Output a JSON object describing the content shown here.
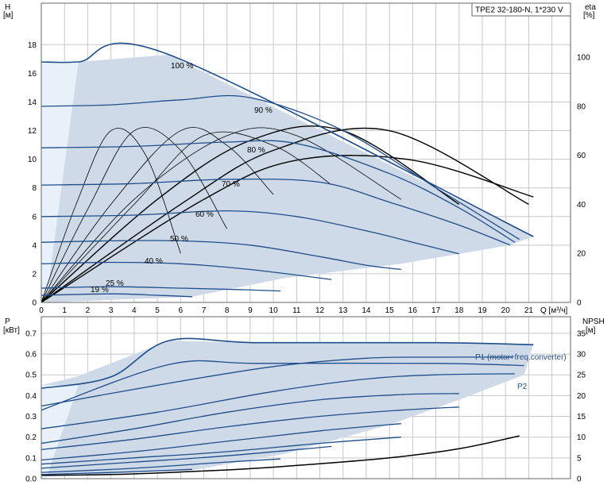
{
  "chart_data": [
    {
      "type": "line",
      "title": "TPE2 32-180-N, 1*230 V",
      "xlabel": "Q [м³/ч]",
      "ylabel": "H [м]",
      "ylabel_lines": [
        "H",
        "[м]"
      ],
      "y2label_lines": [
        "eta",
        "[%]"
      ],
      "xlim": [
        0,
        22.8
      ],
      "ylim": [
        0,
        20.9
      ],
      "y2lim": [
        0,
        122
      ],
      "x_ticks": [
        "0",
        "1",
        "2",
        "3",
        "4",
        "5",
        "6",
        "7",
        "8",
        "9",
        "10",
        "11",
        "12",
        "13",
        "14",
        "15",
        "16",
        "17",
        "18",
        "19",
        "20",
        "21"
      ],
      "y_ticks": [
        "0",
        "2",
        "4",
        "6",
        "8",
        "10",
        "12",
        "14",
        "16",
        "18"
      ],
      "y2_ticks": [
        "0",
        "20",
        "40",
        "60",
        "80",
        "100"
      ],
      "q_unit_label": "Q [м³/ч]",
      "grid": true,
      "colors": {
        "curve": "#1f4e8c",
        "fill": "#cfdae8",
        "eta": "#000000",
        "grid": "#c8c8c8"
      },
      "operating_area": {
        "x": [
          0,
          1.6,
          5.5,
          9.2,
          21.2,
          20.2,
          15.5,
          10.5,
          6.5,
          1.0,
          0.2,
          0
        ],
        "y": [
          16.8,
          16.8,
          17.3,
          14.3,
          4.6,
          4.0,
          2.7,
          1.7,
          0.4,
          0.05,
          0.0,
          0
        ]
      },
      "series": [
        {
          "name": "100 %",
          "label": "100 %",
          "x": [
            0,
            1.6,
            5.5,
            21.2
          ],
          "y": [
            16.8,
            16.8,
            17.3,
            4.6
          ]
        },
        {
          "name": "90 %",
          "label": "90 %",
          "x": [
            0,
            3,
            6,
            9,
            13,
            17,
            20.6
          ],
          "y": [
            13.7,
            13.8,
            14.15,
            14.3,
            12.0,
            8.0,
            4.4
          ]
        },
        {
          "name": "80 %",
          "label": "80 %",
          "x": [
            0,
            4,
            8,
            11,
            15,
            18,
            20.4
          ],
          "y": [
            10.8,
            10.9,
            11.2,
            11.1,
            9.0,
            6.6,
            4.2
          ]
        },
        {
          "name": "70 %",
          "label": "70 %",
          "x": [
            0,
            4,
            8,
            12,
            15,
            18,
            20.2
          ],
          "y": [
            8.2,
            8.3,
            8.6,
            8.4,
            7.0,
            5.4,
            4.0
          ]
        },
        {
          "name": "60 %",
          "label": "60 %",
          "x": [
            0,
            4,
            8,
            11,
            14,
            16,
            18
          ],
          "y": [
            6.0,
            6.1,
            6.4,
            6.0,
            5.0,
            4.2,
            3.4
          ]
        },
        {
          "name": "50 %",
          "label": "50 %",
          "x": [
            0,
            3,
            6,
            9,
            12,
            14,
            15.5
          ],
          "y": [
            4.2,
            4.3,
            4.3,
            4.0,
            3.2,
            2.6,
            2.3
          ]
        },
        {
          "name": "40 %",
          "label": "40 %",
          "x": [
            0,
            3,
            6,
            9,
            12.5
          ],
          "y": [
            2.7,
            2.8,
            2.7,
            2.3,
            1.6
          ]
        },
        {
          "name": "25 %",
          "label": "25 %",
          "x": [
            0,
            3,
            6,
            8.5,
            10.3
          ],
          "y": [
            1.0,
            1.1,
            1.0,
            0.9,
            0.8
          ]
        },
        {
          "name": "19 %",
          "label": "19 %",
          "x": [
            0,
            3,
            5,
            6.5
          ],
          "y": [
            0.5,
            0.6,
            0.5,
            0.4
          ]
        }
      ],
      "eta_curves_y2": [
        {
          "x": [
            0,
            1.5,
            3,
            4.5,
            6
          ],
          "y": [
            0,
            40,
            70,
            60,
            20
          ]
        },
        {
          "x": [
            0,
            2,
            4,
            6,
            8
          ],
          "y": [
            0,
            38,
            70,
            62,
            30
          ]
        },
        {
          "x": [
            0,
            3,
            6,
            8,
            10
          ],
          "y": [
            0,
            40,
            70,
            64,
            44
          ]
        },
        {
          "x": [
            0,
            4,
            7,
            10,
            12.5
          ],
          "y": [
            0,
            40,
            68,
            64,
            48
          ]
        },
        {
          "x": [
            0,
            4,
            8,
            11,
            15.5
          ],
          "y": [
            0,
            42,
            68,
            68,
            42
          ]
        },
        {
          "x": [
            0,
            5,
            9,
            13,
            18
          ],
          "y": [
            0,
            42,
            66,
            70,
            40
          ]
        },
        {
          "x": [
            0,
            6,
            10,
            15,
            21
          ],
          "y": [
            0,
            40,
            62,
            70,
            40
          ]
        },
        {
          "x": [
            0,
            7,
            11,
            16,
            21.2
          ],
          "y": [
            0,
            42,
            58,
            58,
            43
          ]
        }
      ]
    },
    {
      "type": "line",
      "title": "",
      "xlabel": "",
      "ylabel": "P [кВт]",
      "ylabel_lines": [
        "P",
        "[кВт]"
      ],
      "y2label_lines": [
        "NPSH",
        "[м]"
      ],
      "xlim": [
        0,
        22.8
      ],
      "ylim": [
        0,
        0.78
      ],
      "y2lim": [
        0,
        39
      ],
      "y_ticks": [
        "0.0",
        "0.1",
        "0.2",
        "0.3",
        "0.4",
        "0.5",
        "0.6",
        "0.7"
      ],
      "y2_ticks": [
        "0",
        "5",
        "10",
        "15",
        "20",
        "25",
        "30",
        "35"
      ],
      "grid": true,
      "operating_area": {
        "x": [
          0,
          1.5,
          5.5,
          9.3,
          21.2,
          20.8,
          18,
          15,
          10.5,
          6.5,
          0.2,
          0
        ],
        "y": [
          0.45,
          0.49,
          0.665,
          0.655,
          0.65,
          0.5,
          0.38,
          0.26,
          0.12,
          0.04,
          0.01,
          0
        ]
      },
      "series": [
        {
          "name": "P1 (motor+freq.converter)",
          "label": "P1 (motor+freq.converter)",
          "x": [
            0,
            3,
            5.5,
            9.3,
            17,
            21.2
          ],
          "y": [
            0.435,
            0.49,
            0.665,
            0.655,
            0.655,
            0.645
          ]
        },
        {
          "name": "P2",
          "label": "P2",
          "x": [
            0,
            5.5,
            9.3,
            17,
            20.8
          ],
          "y": [
            0.33,
            0.55,
            0.555,
            0.555,
            0.545
          ]
        },
        {
          "name": "",
          "label": "",
          "x": [
            0,
            5,
            10,
            14,
            17,
            20.3
          ],
          "y": [
            0.35,
            0.45,
            0.54,
            0.58,
            0.585,
            0.585
          ]
        },
        {
          "name": "",
          "label": "",
          "x": [
            0,
            5,
            10,
            14,
            17,
            20.4
          ],
          "y": [
            0.24,
            0.32,
            0.42,
            0.48,
            0.5,
            0.505
          ]
        },
        {
          "name": "",
          "label": "",
          "x": [
            0,
            4,
            8,
            12,
            15.5,
            18
          ],
          "y": [
            0.17,
            0.24,
            0.32,
            0.38,
            0.405,
            0.41
          ]
        },
        {
          "name": "",
          "label": "",
          "x": [
            0,
            4,
            8,
            12,
            15.5,
            18
          ],
          "y": [
            0.14,
            0.19,
            0.25,
            0.3,
            0.33,
            0.345
          ]
        },
        {
          "name": "",
          "label": "",
          "x": [
            0,
            4,
            8,
            12,
            15.5
          ],
          "y": [
            0.09,
            0.13,
            0.18,
            0.23,
            0.265
          ]
        },
        {
          "name": "",
          "label": "",
          "x": [
            0,
            4,
            8,
            12,
            15.5
          ],
          "y": [
            0.07,
            0.1,
            0.13,
            0.17,
            0.2
          ]
        },
        {
          "name": "",
          "label": "",
          "x": [
            0,
            4,
            8,
            12.5
          ],
          "y": [
            0.05,
            0.08,
            0.11,
            0.155
          ]
        },
        {
          "name": "",
          "label": "",
          "x": [
            0,
            4,
            8,
            10.3
          ],
          "y": [
            0.03,
            0.05,
            0.08,
            0.095
          ]
        },
        {
          "name": "",
          "label": "",
          "x": [
            0,
            3,
            5.5,
            6.5
          ],
          "y": [
            0.02,
            0.03,
            0.04,
            0.045
          ]
        }
      ],
      "npsh_curve_y2": {
        "x": [
          0,
          3,
          6,
          9,
          12,
          15,
          18,
          20.6
        ],
        "y": [
          0.8,
          1.0,
          1.6,
          2.4,
          3.6,
          5.0,
          7.2,
          10.3
        ]
      }
    }
  ]
}
